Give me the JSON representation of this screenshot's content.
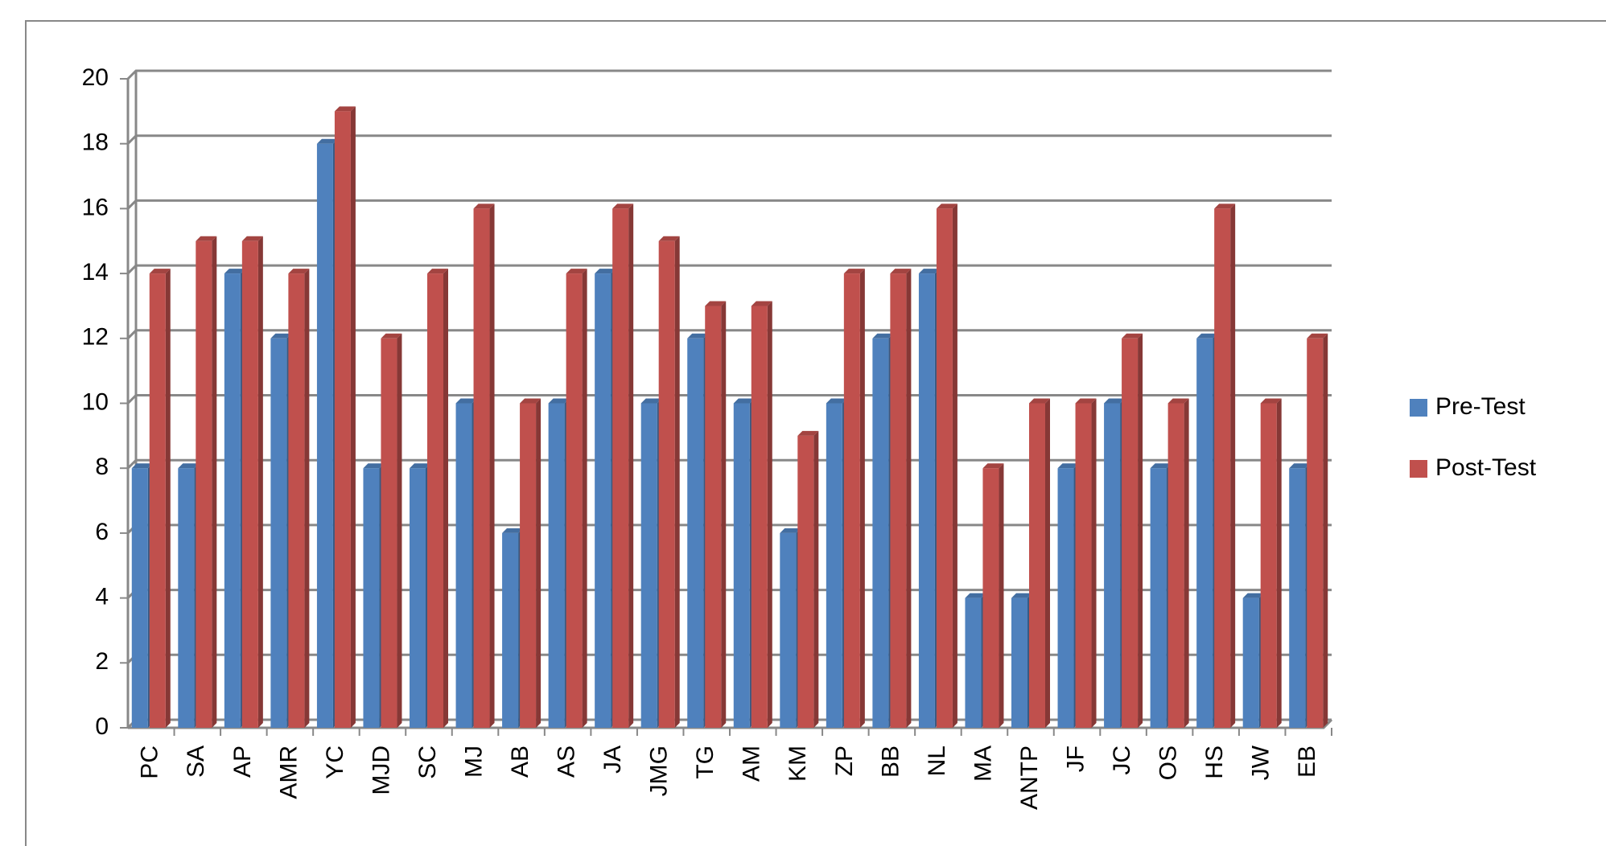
{
  "chart_data": {
    "type": "bar",
    "categories": [
      "PC",
      "SA",
      "AP",
      "AMR",
      "YC",
      "MJD",
      "SC",
      "MJ",
      "AB",
      "AS",
      "JA",
      "JMG",
      "TG",
      "AM",
      "KM",
      "ZP",
      "BB",
      "NL",
      "MA",
      "ANTP",
      "JF",
      "JC",
      "OS",
      "HS",
      "JW",
      "EB"
    ],
    "series": [
      {
        "name": "Pre-Test",
        "color": "#4f81bd",
        "values": [
          8,
          8,
          14,
          12,
          18,
          8,
          8,
          10,
          6,
          10,
          14,
          10,
          12,
          10,
          6,
          10,
          12,
          14,
          4,
          4,
          8,
          10,
          8,
          12,
          4,
          8
        ]
      },
      {
        "name": "Post-Test",
        "color": "#c0504d",
        "values": [
          14,
          15,
          15,
          14,
          19,
          12,
          14,
          16,
          10,
          14,
          16,
          15,
          13,
          13,
          9,
          14,
          14,
          16,
          8,
          10,
          10,
          12,
          10,
          16,
          10,
          12
        ]
      }
    ],
    "ylim": [
      0,
      20
    ],
    "yticks": [
      0,
      2,
      4,
      6,
      8,
      10,
      12,
      14,
      16,
      18,
      20
    ],
    "grid": true,
    "legend": "right"
  }
}
